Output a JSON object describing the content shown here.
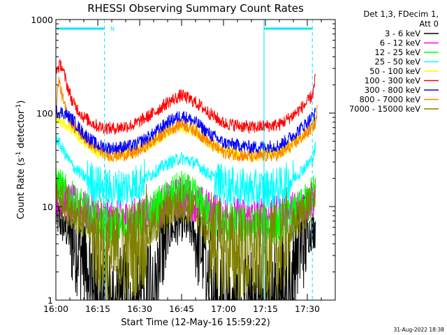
{
  "chart_data": {
    "type": "line",
    "title": "RHESSI Observing Summary Count Rates",
    "xlabel": "Start Time (12-May-16 15:59:22)",
    "ylabel_main": "Count Rate (s",
    "ylabel_sup1": "-1",
    "ylabel_mid": " detector",
    "ylabel_sup2": "-1",
    "ylabel_end": ")",
    "yscale": "log",
    "ylim": [
      1,
      1000
    ],
    "xlim_minutes": [
      0,
      100
    ],
    "x_ticks": [
      {
        "m": 0,
        "label": "16:00"
      },
      {
        "m": 15,
        "label": "16:15"
      },
      {
        "m": 30,
        "label": "16:30"
      },
      {
        "m": 45,
        "label": "16:45"
      },
      {
        "m": 60,
        "label": "17:00"
      },
      {
        "m": 75,
        "label": "17:15"
      },
      {
        "m": 90,
        "label": "17:30"
      }
    ],
    "y_ticks": [
      {
        "v": 1,
        "label": "1"
      },
      {
        "v": 10,
        "label": "10"
      },
      {
        "v": 100,
        "label": "100"
      },
      {
        "v": 1000,
        "label": "1000"
      }
    ],
    "flag_label": "N",
    "legend_header": [
      "Det 1,3, FDecim 1,",
      "Att 0"
    ],
    "series": [
      {
        "name": "3 - 6 keV",
        "color": "#000000",
        "points": [
          [
            0,
            8
          ],
          [
            5,
            5
          ],
          [
            10,
            3
          ],
          [
            15,
            1.5
          ],
          [
            20,
            1
          ],
          [
            28,
            1.3
          ],
          [
            35,
            2.5
          ],
          [
            40,
            5
          ],
          [
            45,
            7
          ],
          [
            50,
            5
          ],
          [
            55,
            2.5
          ],
          [
            60,
            1.5
          ],
          [
            65,
            1
          ],
          [
            75,
            1
          ],
          [
            80,
            1.5
          ],
          [
            85,
            3
          ],
          [
            90,
            5
          ],
          [
            93,
            6
          ]
        ]
      },
      {
        "name": "6 - 12 keV",
        "color": "#ff00ff",
        "points": [
          [
            0,
            14
          ],
          [
            5,
            11
          ],
          [
            10,
            9
          ],
          [
            15,
            8
          ],
          [
            20,
            7
          ],
          [
            28,
            7.5
          ],
          [
            35,
            9
          ],
          [
            40,
            11
          ],
          [
            45,
            13
          ],
          [
            50,
            11
          ],
          [
            55,
            9
          ],
          [
            60,
            8
          ],
          [
            70,
            7.5
          ],
          [
            80,
            8
          ],
          [
            85,
            9
          ],
          [
            90,
            11
          ],
          [
            93,
            13
          ]
        ]
      },
      {
        "name": "12 - 25 keV",
        "color": "#00ff00",
        "points": [
          [
            0,
            18
          ],
          [
            5,
            12
          ],
          [
            10,
            9
          ],
          [
            15,
            7
          ],
          [
            20,
            6
          ],
          [
            28,
            6.5
          ],
          [
            35,
            9
          ],
          [
            40,
            12
          ],
          [
            45,
            15
          ],
          [
            50,
            12
          ],
          [
            55,
            8
          ],
          [
            60,
            6.5
          ],
          [
            70,
            6
          ],
          [
            80,
            6.5
          ],
          [
            85,
            8
          ],
          [
            90,
            11
          ],
          [
            93,
            15
          ]
        ]
      },
      {
        "name": "25 - 50 keV",
        "color": "#00ffff",
        "points": [
          [
            0,
            55
          ],
          [
            3,
            38
          ],
          [
            6,
            27
          ],
          [
            10,
            21
          ],
          [
            15,
            17
          ],
          [
            20,
            15
          ],
          [
            28,
            17
          ],
          [
            35,
            23
          ],
          [
            40,
            29
          ],
          [
            45,
            33
          ],
          [
            50,
            29
          ],
          [
            55,
            22
          ],
          [
            60,
            17
          ],
          [
            70,
            15
          ],
          [
            80,
            16
          ],
          [
            85,
            20
          ],
          [
            90,
            28
          ],
          [
            92,
            33
          ],
          [
            93,
            45
          ]
        ]
      },
      {
        "name": "50 - 100 keV",
        "color": "#ffff00",
        "points": [
          [
            0,
            90
          ],
          [
            2,
            82
          ],
          [
            5,
            70
          ],
          [
            10,
            50
          ],
          [
            15,
            38
          ],
          [
            20,
            35
          ],
          [
            28,
            38
          ],
          [
            35,
            50
          ],
          [
            40,
            63
          ],
          [
            45,
            72
          ],
          [
            50,
            63
          ],
          [
            55,
            48
          ],
          [
            60,
            38
          ],
          [
            70,
            35
          ],
          [
            80,
            38
          ],
          [
            85,
            47
          ],
          [
            90,
            63
          ],
          [
            93,
            78
          ]
        ]
      },
      {
        "name": "100 - 300 keV",
        "color": "#ff0000",
        "points": [
          [
            0,
            290
          ],
          [
            2,
            330
          ],
          [
            4,
            200
          ],
          [
            6,
            130
          ],
          [
            10,
            90
          ],
          [
            15,
            72
          ],
          [
            20,
            68
          ],
          [
            28,
            75
          ],
          [
            35,
            100
          ],
          [
            40,
            130
          ],
          [
            45,
            155
          ],
          [
            50,
            130
          ],
          [
            55,
            100
          ],
          [
            60,
            78
          ],
          [
            70,
            70
          ],
          [
            80,
            75
          ],
          [
            85,
            95
          ],
          [
            90,
            130
          ],
          [
            92,
            160
          ],
          [
            93,
            250
          ]
        ]
      },
      {
        "name": "300 - 800 keV",
        "color": "#0000ff",
        "points": [
          [
            0,
            105
          ],
          [
            3,
            100
          ],
          [
            6,
            85
          ],
          [
            10,
            60
          ],
          [
            15,
            45
          ],
          [
            20,
            42
          ],
          [
            28,
            45
          ],
          [
            35,
            60
          ],
          [
            40,
            80
          ],
          [
            45,
            95
          ],
          [
            50,
            80
          ],
          [
            55,
            60
          ],
          [
            60,
            48
          ],
          [
            70,
            43
          ],
          [
            80,
            45
          ],
          [
            85,
            58
          ],
          [
            90,
            80
          ],
          [
            93,
            100
          ]
        ]
      },
      {
        "name": "800 - 7000 keV",
        "color": "#ff8000",
        "points": [
          [
            0,
            95
          ],
          [
            1,
            230
          ],
          [
            3,
            120
          ],
          [
            6,
            75
          ],
          [
            10,
            55
          ],
          [
            15,
            40
          ],
          [
            20,
            35
          ],
          [
            28,
            37
          ],
          [
            35,
            50
          ],
          [
            40,
            65
          ],
          [
            45,
            78
          ],
          [
            50,
            65
          ],
          [
            55,
            48
          ],
          [
            60,
            38
          ],
          [
            70,
            34
          ],
          [
            80,
            36
          ],
          [
            85,
            46
          ],
          [
            90,
            62
          ],
          [
            93,
            78
          ],
          [
            93.5,
            110
          ]
        ]
      },
      {
        "name": "7000 - 15000 keV",
        "color": "#808000",
        "points": [
          [
            0,
            14
          ],
          [
            5,
            10
          ],
          [
            10,
            7
          ],
          [
            15,
            4
          ],
          [
            20,
            3
          ],
          [
            28,
            3.5
          ],
          [
            35,
            6
          ],
          [
            40,
            9
          ],
          [
            45,
            11
          ],
          [
            50,
            9
          ],
          [
            55,
            5
          ],
          [
            60,
            3.5
          ],
          [
            70,
            3
          ],
          [
            80,
            3.5
          ],
          [
            85,
            6
          ],
          [
            90,
            10
          ],
          [
            93,
            13
          ]
        ]
      }
    ]
  },
  "timestamp": "31-Aug-2022 18:38"
}
